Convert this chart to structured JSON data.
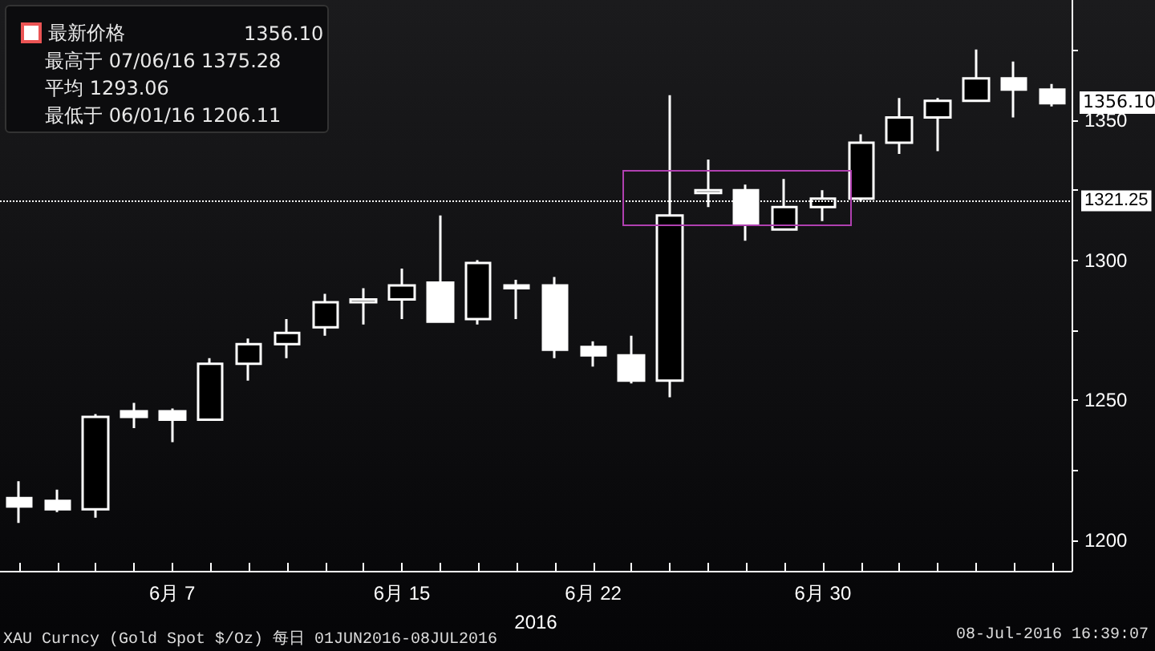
{
  "chart_data": {
    "type": "candlestick",
    "xlabel": "2016",
    "categories": [
      null,
      null,
      null,
      null,
      "6月 7",
      null,
      null,
      null,
      null,
      null,
      "6月 15",
      null,
      null,
      null,
      null,
      "6月 22",
      null,
      null,
      null,
      null,
      null,
      "6月 30",
      null,
      null,
      null,
      null,
      null,
      null
    ],
    "series": [
      {
        "name": "最新价格",
        "ohlc": [
          [
            1215,
            1221,
            1206.11,
            1212
          ],
          [
            1214,
            1218,
            1210,
            1211
          ],
          [
            1211,
            1245,
            1208,
            1244
          ],
          [
            1246,
            1249,
            1240,
            1244
          ],
          [
            1246,
            1247,
            1235,
            1243
          ],
          [
            1243,
            1265,
            1243,
            1263
          ],
          [
            1263,
            1272,
            1257,
            1270
          ],
          [
            1270,
            1279,
            1265,
            1274
          ],
          [
            1276,
            1288,
            1273,
            1285
          ],
          [
            1285,
            1290,
            1277,
            1286
          ],
          [
            1286,
            1297,
            1279,
            1291
          ],
          [
            1292,
            1316,
            1278,
            1278
          ],
          [
            1279,
            1300,
            1277,
            1299
          ],
          [
            1291,
            1293,
            1279,
            1290
          ],
          [
            1291,
            1294,
            1265,
            1268
          ],
          [
            1269,
            1271,
            1262,
            1266
          ],
          [
            1266,
            1273,
            1256,
            1257
          ],
          [
            1257,
            1359,
            1251,
            1316
          ],
          [
            1324,
            1336,
            1319,
            1325
          ],
          [
            1325,
            1327,
            1307,
            1313
          ],
          [
            1311,
            1329,
            1311,
            1319
          ],
          [
            1319,
            1325,
            1314,
            1322
          ],
          [
            1322,
            1345,
            1321,
            1342
          ],
          [
            1342,
            1358,
            1338,
            1351
          ],
          [
            1351,
            1358,
            1339,
            1357
          ],
          [
            1357,
            1375.28,
            1357,
            1365
          ],
          [
            1365,
            1371,
            1351,
            1361
          ],
          [
            1361,
            1363,
            1355,
            1356.1
          ]
        ],
        "colors": [
          "#ffffff",
          "#ffffff",
          "#000000",
          "#ffffff",
          "#ffffff",
          "#000000",
          "#000000",
          "#000000",
          "#000000",
          "#000000",
          "#000000",
          "#ffffff",
          "#000000",
          "#ffffff",
          "#ffffff",
          "#ffffff",
          "#ffffff",
          "#000000",
          "#000000",
          "#ffffff",
          "#000000",
          "#000000",
          "#000000",
          "#000000",
          "#000000",
          "#000000",
          "#ffffff",
          "#ffffff"
        ]
      }
    ],
    "ylim": [
      1189,
      1393
    ],
    "yticks": [
      1200,
      {
        "value": 1225,
        "label": null
      },
      1250,
      {
        "value": 1275,
        "label": null
      },
      1300,
      {
        "value": 1325,
        "label": null
      },
      1350,
      {
        "value": 1375,
        "label": null
      }
    ],
    "ref_lines": [
      {
        "axis": "y",
        "value": 1321.25,
        "label": "1321.25",
        "color": "#ffffff",
        "line_style": "dotted"
      }
    ],
    "legend": "top left",
    "annotations": [
      "1356.10",
      "最高于 07/06/16 1375.28",
      "平均 1293.06",
      "最低于 06/01/16 1206.11",
      "XAU Curncy (Gold Spot $/Oz) 每日 01JUN2016-08JUL2016",
      "08-Jul-2016 16:39:07",
      "1356.10"
    ]
  }
}
